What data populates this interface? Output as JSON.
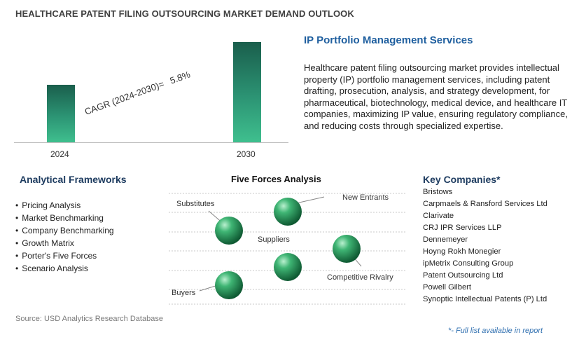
{
  "page_title": "HEALTHCARE PATENT FILING OUTSOURCING MARKET DEMAND OUTLOOK",
  "chart_data": {
    "type": "bar",
    "categories": [
      "2024",
      "2030"
    ],
    "values": [
      1.0,
      1.4
    ],
    "annotation": {
      "label": "CAGR (2024-2030)=",
      "value": "5.8%"
    }
  },
  "ip_section": {
    "title": "IP Portfolio Management Services",
    "text": "Healthcare patent filing outsourcing market provides intellectual property (IP) portfolio management services, including patent drafting, prosecution, analysis, and strategy development, for pharmaceutical, biotechnology, medical device, and healthcare IT companies, maximizing IP value, ensuring regulatory compliance, and reducing costs through specialized expertise."
  },
  "analytical_frameworks": {
    "title": "Analytical Frameworks",
    "items": [
      "Pricing Analysis",
      "Market Benchmarking",
      "Company Benchmarking",
      "Growth Matrix",
      "Porter's Five Forces",
      "Scenario Analysis"
    ]
  },
  "five_forces": {
    "title": "Five Forces Analysis",
    "labels": {
      "substitutes": "Substitutes",
      "new_entrants": "New Entrants",
      "suppliers": "Suppliers",
      "competitive_rivalry": "Competitive Rivalry",
      "buyers": "Buyers"
    },
    "sphere_color": "#2e9a63"
  },
  "key_companies": {
    "title": "Key Companies*",
    "items": [
      "Bristows",
      "Carpmaels & Ransford Services Ltd",
      "Clarivate",
      "CRJ IPR Services LLP",
      "Dennemeyer",
      "Hoyng Rokh Monegier",
      "ipMetrix Consulting Group",
      "Patent Outsourcing Ltd",
      "Powell Gilbert",
      "Synoptic Intellectual Patents (P) Ltd"
    ]
  },
  "source": "Source: USD Analytics Research Database",
  "footnote": "*- Full list available in report"
}
